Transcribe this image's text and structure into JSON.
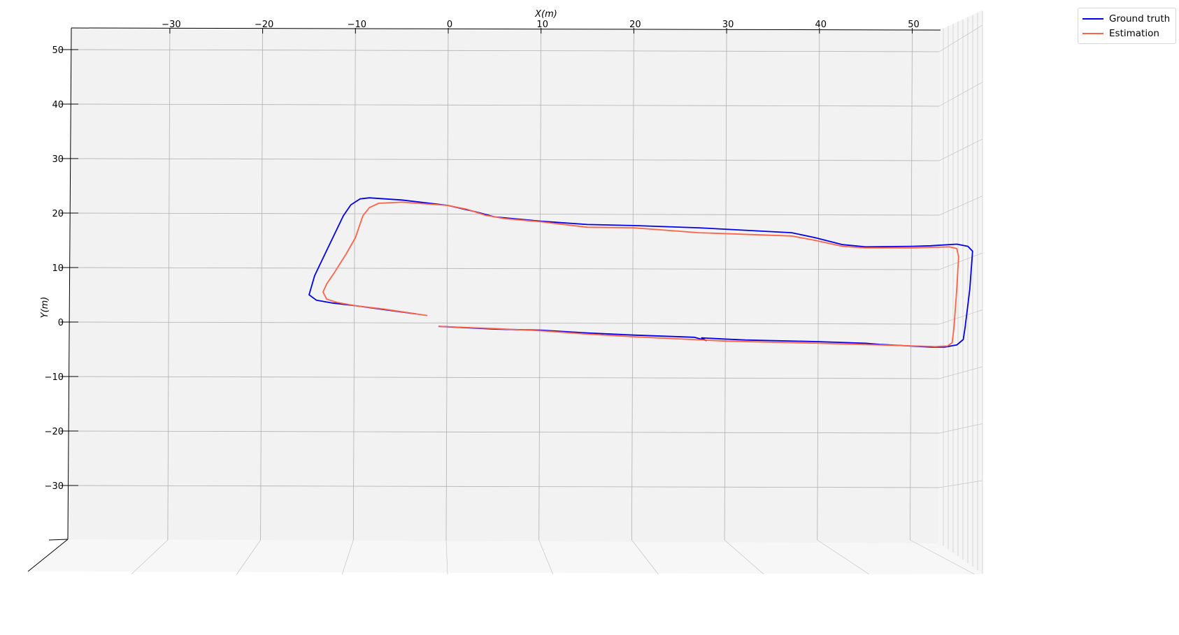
{
  "chart_data": {
    "type": "line",
    "title": "",
    "xlabel": "X(m)",
    "ylabel": "Y(m)",
    "xlim": [
      -40,
      53
    ],
    "ylim": [
      -40,
      53
    ],
    "grid": true,
    "x_ticks": [
      -30,
      -20,
      -10,
      0,
      10,
      20,
      30,
      40,
      50
    ],
    "y_ticks": [
      50,
      40,
      30,
      20,
      10,
      0,
      -10,
      -20,
      -30
    ],
    "x_tick_labels": [
      "−30",
      "−20",
      "−10",
      "0",
      "10",
      "20",
      "30",
      "40",
      "50"
    ],
    "y_tick_labels": [
      "50",
      "40",
      "30",
      "20",
      "10",
      "0",
      "−10",
      "−20",
      "−30"
    ],
    "legend_position": "outside-top-right",
    "series": [
      {
        "name": "Ground truth",
        "color": "#0000ee",
        "points": [
          [
            -3.5,
            1.5
          ],
          [
            -10,
            3.0
          ],
          [
            -12.5,
            3.5
          ],
          [
            -14.2,
            4.0
          ],
          [
            -15.0,
            5.0
          ],
          [
            -14.4,
            8.5
          ],
          [
            -13.0,
            13.5
          ],
          [
            -11.3,
            19.5
          ],
          [
            -10.5,
            21.5
          ],
          [
            -9.5,
            22.6
          ],
          [
            -8.5,
            22.8
          ],
          [
            -5.0,
            22.4
          ],
          [
            0,
            21.4
          ],
          [
            3.0,
            20.2
          ],
          [
            5.0,
            19.3
          ],
          [
            10.0,
            18.5
          ],
          [
            15.0,
            17.9
          ],
          [
            20.0,
            17.7
          ],
          [
            27.0,
            17.3
          ],
          [
            37.0,
            16.4
          ],
          [
            39.5,
            15.5
          ],
          [
            42.5,
            14.2
          ],
          [
            45.0,
            13.8
          ],
          [
            50.0,
            13.9
          ],
          [
            52.0,
            14.0
          ],
          [
            54.8,
            14.3
          ],
          [
            56.0,
            13.9
          ],
          [
            56.5,
            13.0
          ],
          [
            56.2,
            6.0
          ],
          [
            55.7,
            -1.0
          ],
          [
            55.5,
            -3.2
          ],
          [
            54.8,
            -4.2
          ],
          [
            53.5,
            -4.6
          ],
          [
            52.0,
            -4.6
          ],
          [
            46.5,
            -4.1
          ],
          [
            45.0,
            -3.9
          ],
          [
            40.0,
            -3.6
          ],
          [
            32.0,
            -3.3
          ],
          [
            29.5,
            -3.1
          ],
          [
            27.3,
            -2.9
          ],
          [
            27.8,
            -3.4
          ],
          [
            26.5,
            -2.8
          ],
          [
            20.0,
            -2.4
          ],
          [
            15.0,
            -2.0
          ],
          [
            10.0,
            -1.5
          ],
          [
            5.0,
            -1.3
          ],
          [
            -1.0,
            -0.8
          ]
        ]
      },
      {
        "name": "Estimation",
        "color": "#ff6347",
        "points": [
          [
            -2.3,
            1.2
          ],
          [
            -7.0,
            2.4
          ],
          [
            -10.0,
            3.0
          ],
          [
            -12.0,
            3.6
          ],
          [
            -13.1,
            4.2
          ],
          [
            -13.5,
            5.5
          ],
          [
            -13.1,
            7.0
          ],
          [
            -12.3,
            9.0
          ],
          [
            -11.0,
            12.5
          ],
          [
            -10.0,
            15.5
          ],
          [
            -9.2,
            19.5
          ],
          [
            -8.5,
            21.0
          ],
          [
            -7.5,
            21.8
          ],
          [
            -5.0,
            22.0
          ],
          [
            0,
            21.4
          ],
          [
            2.0,
            20.7
          ],
          [
            4.0,
            19.6
          ],
          [
            6.0,
            19.0
          ],
          [
            10.0,
            18.4
          ],
          [
            15.0,
            17.4
          ],
          [
            20.0,
            17.3
          ],
          [
            27.0,
            16.4
          ],
          [
            37.0,
            15.8
          ],
          [
            39.5,
            15.0
          ],
          [
            42.5,
            13.9
          ],
          [
            45.0,
            13.6
          ],
          [
            50.0,
            13.6
          ],
          [
            54.0,
            13.8
          ],
          [
            54.8,
            13.5
          ],
          [
            55.0,
            12.0
          ],
          [
            54.8,
            6.0
          ],
          [
            54.5,
            -1.0
          ],
          [
            54.3,
            -3.8
          ],
          [
            53.8,
            -4.4
          ],
          [
            52.5,
            -4.5
          ],
          [
            46.5,
            -4.2
          ],
          [
            40.0,
            -3.9
          ],
          [
            30.0,
            -3.5
          ],
          [
            20.0,
            -2.7
          ],
          [
            15.0,
            -2.2
          ],
          [
            10.0,
            -1.6
          ],
          [
            5.0,
            -1.2
          ],
          [
            -1.0,
            -0.8
          ]
        ]
      }
    ]
  }
}
